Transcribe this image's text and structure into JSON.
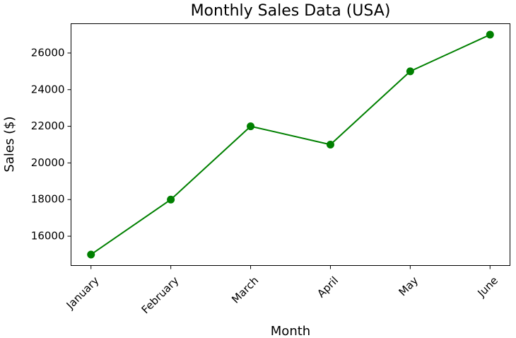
{
  "chart_data": {
    "type": "line",
    "title": "Monthly Sales Data (USA)",
    "x_label": "Month",
    "y_label": "Sales ($)",
    "categories": [
      "January",
      "February",
      "March",
      "April",
      "May",
      "June"
    ],
    "series": [
      {
        "name": "Sales",
        "color": "#008000",
        "values": [
          15000,
          18000,
          22000,
          21000,
          25000,
          27000
        ]
      }
    ],
    "ylim": [
      14400,
      27600
    ],
    "yticks": [
      16000,
      18000,
      20000,
      22000,
      24000,
      26000
    ],
    "grid": false
  }
}
